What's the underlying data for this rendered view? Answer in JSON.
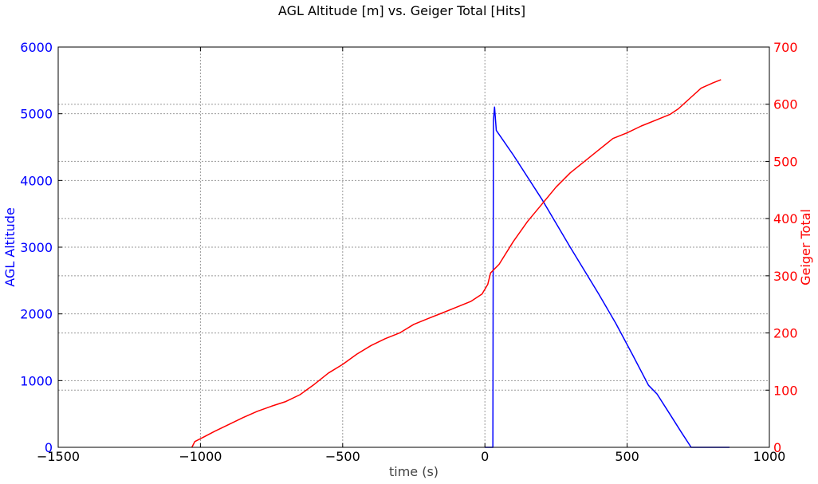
{
  "chart_data": {
    "type": "line",
    "title": "AGL Altitude [m] vs. Geiger Total [Hits]",
    "xlabel": "time (s)",
    "xlim": [
      -1500,
      1000
    ],
    "x_ticks": [
      -1500,
      -1000,
      -500,
      0,
      500,
      1000
    ],
    "x_tick_labels": [
      "−1500",
      "−1000",
      "−500",
      "0",
      "500",
      "1000"
    ],
    "grid": true,
    "y_axes": {
      "left": {
        "label": "AGL Altitude",
        "color": "#0000ff",
        "ylim": [
          0,
          6000
        ],
        "ticks": [
          0,
          1000,
          2000,
          3000,
          4000,
          5000,
          6000
        ],
        "tick_labels": [
          "0",
          "1000",
          "2000",
          "3000",
          "4000",
          "5000",
          "6000"
        ]
      },
      "right": {
        "label": "Geiger Total",
        "color": "#ff0000",
        "ylim": [
          0,
          700
        ],
        "ticks": [
          0,
          100,
          200,
          300,
          400,
          500,
          600,
          700
        ],
        "tick_labels": [
          "0",
          "100",
          "200",
          "300",
          "400",
          "500",
          "600",
          "700"
        ]
      }
    },
    "series": [
      {
        "axis": "left",
        "color": "#0000ff",
        "points": [
          [
            0,
            0
          ],
          [
            28,
            0
          ],
          [
            30,
            4900
          ],
          [
            34,
            5100
          ],
          [
            40,
            4750
          ],
          [
            100,
            4380
          ],
          [
            200,
            3720
          ],
          [
            300,
            3000
          ],
          [
            400,
            2300
          ],
          [
            460,
            1860
          ],
          [
            520,
            1380
          ],
          [
            575,
            930
          ],
          [
            605,
            800
          ],
          [
            650,
            500
          ],
          [
            690,
            230
          ],
          [
            725,
            0
          ],
          [
            860,
            0
          ]
        ]
      },
      {
        "axis": "right",
        "color": "#ff0000",
        "points": [
          [
            -1030,
            0
          ],
          [
            -1020,
            10
          ],
          [
            -1000,
            15
          ],
          [
            -950,
            28
          ],
          [
            -900,
            40
          ],
          [
            -850,
            52
          ],
          [
            -800,
            63
          ],
          [
            -750,
            72
          ],
          [
            -700,
            80
          ],
          [
            -650,
            92
          ],
          [
            -600,
            110
          ],
          [
            -550,
            130
          ],
          [
            -500,
            145
          ],
          [
            -450,
            163
          ],
          [
            -400,
            178
          ],
          [
            -350,
            190
          ],
          [
            -300,
            200
          ],
          [
            -250,
            215
          ],
          [
            -200,
            225
          ],
          [
            -150,
            235
          ],
          [
            -100,
            245
          ],
          [
            -50,
            255
          ],
          [
            -10,
            268
          ],
          [
            10,
            285
          ],
          [
            20,
            305
          ],
          [
            50,
            320
          ],
          [
            100,
            360
          ],
          [
            150,
            395
          ],
          [
            200,
            425
          ],
          [
            250,
            455
          ],
          [
            300,
            480
          ],
          [
            350,
            500
          ],
          [
            400,
            520
          ],
          [
            450,
            540
          ],
          [
            500,
            550
          ],
          [
            550,
            562
          ],
          [
            600,
            572
          ],
          [
            650,
            582
          ],
          [
            680,
            592
          ],
          [
            720,
            610
          ],
          [
            760,
            628
          ],
          [
            800,
            637
          ],
          [
            830,
            643
          ]
        ]
      }
    ]
  }
}
